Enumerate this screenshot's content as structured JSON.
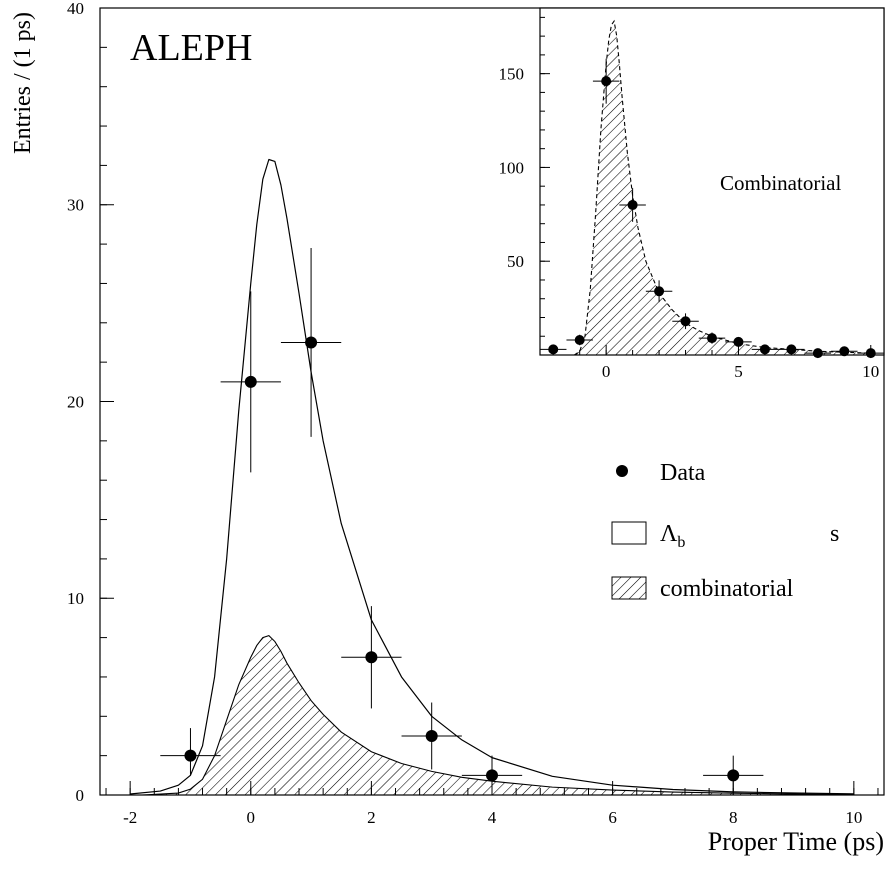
{
  "chart_data": [
    {
      "type": "scatter",
      "panel": "main",
      "title": "ALEPH",
      "xlabel": "Proper Time (ps)",
      "ylabel": "Entries / (1 ps)",
      "xlim": [
        -2.5,
        10.5
      ],
      "ylim": [
        0,
        40
      ],
      "xticks": [
        -2,
        0,
        2,
        4,
        6,
        8,
        10
      ],
      "yticks": [
        0,
        10,
        20,
        30,
        40
      ],
      "grid": false,
      "legend_position": "right",
      "legend": [
        {
          "marker": "filled-circle",
          "label": "Data"
        },
        {
          "marker": "open-box",
          "label": "Λ",
          "subscript": "b",
          "suffix": "s"
        },
        {
          "marker": "hatched-box",
          "label": "combinatorial"
        }
      ],
      "series": [
        {
          "name": "Data",
          "kind": "points-with-errors",
          "points": [
            {
              "x": -1,
              "y": 2,
              "xerr": 0.5,
              "yerr": [
                1.0,
                1.4
              ]
            },
            {
              "x": 0,
              "y": 21,
              "xerr": 0.5,
              "yerr": [
                4.6,
                4.6
              ]
            },
            {
              "x": 1,
              "y": 23,
              "xerr": 0.5,
              "yerr": [
                4.8,
                4.8
              ]
            },
            {
              "x": 2,
              "y": 7,
              "xerr": 0.5,
              "yerr": [
                2.6,
                2.6
              ]
            },
            {
              "x": 3,
              "y": 3,
              "xerr": 0.5,
              "yerr": [
                1.7,
                1.7
              ]
            },
            {
              "x": 4,
              "y": 1,
              "xerr": 0.5,
              "yerr": [
                0.9,
                1.0
              ]
            },
            {
              "x": 8,
              "y": 1,
              "xerr": 0.5,
              "yerr": [
                0.9,
                1.0
              ]
            }
          ]
        },
        {
          "name": "Λb signal + combinatorial (fit)",
          "kind": "curve",
          "x": [
            -2,
            -1.5,
            -1.2,
            -1.0,
            -0.8,
            -0.6,
            -0.4,
            -0.2,
            0.0,
            0.1,
            0.2,
            0.3,
            0.4,
            0.5,
            0.6,
            0.8,
            1.0,
            1.2,
            1.5,
            2.0,
            2.5,
            3.0,
            3.5,
            4.0,
            5.0,
            6.0,
            7.0,
            8.0,
            9.0,
            10.0
          ],
          "y": [
            0.05,
            0.2,
            0.5,
            1.0,
            2.5,
            6.0,
            12.0,
            19.5,
            26.0,
            29.0,
            31.3,
            32.3,
            32.2,
            31.0,
            29.3,
            25.5,
            21.5,
            18.0,
            13.8,
            8.9,
            6.0,
            4.0,
            2.8,
            1.9,
            0.95,
            0.5,
            0.28,
            0.16,
            0.1,
            0.06
          ]
        },
        {
          "name": "combinatorial",
          "kind": "hatched-area",
          "x": [
            -1.8,
            -1.2,
            -1.0,
            -0.8,
            -0.6,
            -0.4,
            -0.2,
            0.0,
            0.1,
            0.2,
            0.3,
            0.4,
            0.5,
            0.6,
            0.8,
            1.0,
            1.2,
            1.5,
            2.0,
            2.5,
            3.0,
            3.5,
            4.0,
            5.0,
            6.0,
            7.0,
            8.0,
            9.0,
            10.0
          ],
          "y": [
            0,
            0.1,
            0.3,
            0.8,
            2.0,
            3.8,
            5.6,
            7.0,
            7.6,
            8.0,
            8.1,
            7.8,
            7.3,
            6.7,
            5.7,
            4.8,
            4.1,
            3.2,
            2.2,
            1.6,
            1.2,
            0.9,
            0.7,
            0.4,
            0.25,
            0.15,
            0.09,
            0.05,
            0.03
          ]
        }
      ]
    },
    {
      "type": "scatter",
      "panel": "inset",
      "annotation": "Combinatorial",
      "xlim": [
        -2.5,
        10.5
      ],
      "ylim": [
        0,
        185
      ],
      "xticks": [
        0,
        5,
        10
      ],
      "yticks": [
        50,
        100,
        150
      ],
      "grid": false,
      "series": [
        {
          "name": "Data",
          "kind": "points-with-errors",
          "points": [
            {
              "x": -2,
              "y": 3,
              "xerr": 0.5,
              "yerr": [
                1.7,
                1.7
              ]
            },
            {
              "x": -1,
              "y": 8,
              "xerr": 0.5,
              "yerr": [
                2.8,
                2.8
              ]
            },
            {
              "x": 0,
              "y": 146,
              "xerr": 0.5,
              "yerr": [
                12,
                12
              ]
            },
            {
              "x": 1,
              "y": 80,
              "xerr": 0.5,
              "yerr": [
                9,
                9
              ]
            },
            {
              "x": 2,
              "y": 34,
              "xerr": 0.5,
              "yerr": [
                5.8,
                5.8
              ]
            },
            {
              "x": 3,
              "y": 18,
              "xerr": 0.5,
              "yerr": [
                4.2,
                4.2
              ]
            },
            {
              "x": 4,
              "y": 9,
              "xerr": 0.5,
              "yerr": [
                3,
                3
              ]
            },
            {
              "x": 5,
              "y": 7,
              "xerr": 0.5,
              "yerr": [
                2.6,
                2.6
              ]
            },
            {
              "x": 6,
              "y": 3,
              "xerr": 0.5,
              "yerr": [
                1.7,
                1.7
              ]
            },
            {
              "x": 7,
              "y": 3,
              "xerr": 0.5,
              "yerr": [
                1.7,
                1.7
              ]
            },
            {
              "x": 8,
              "y": 1,
              "xerr": 0.5,
              "yerr": [
                1,
                1
              ]
            },
            {
              "x": 9,
              "y": 2,
              "xerr": 0.5,
              "yerr": [
                1.4,
                1.4
              ]
            },
            {
              "x": 10,
              "y": 1,
              "xerr": 0.5,
              "yerr": [
                1,
                1
              ]
            }
          ]
        },
        {
          "name": "combinatorial fit",
          "kind": "hatched-area",
          "x": [
            -1.2,
            -1.0,
            -0.8,
            -0.6,
            -0.4,
            -0.2,
            0.0,
            0.1,
            0.2,
            0.3,
            0.4,
            0.5,
            0.6,
            0.8,
            1.0,
            1.2,
            1.5,
            2.0,
            2.5,
            3.0,
            3.5,
            4.0,
            5.0,
            6.0,
            7.0,
            8.0,
            9.0,
            10.0
          ],
          "y": [
            0,
            2,
            10,
            35,
            75,
            120,
            155,
            168,
            176,
            178,
            170,
            155,
            138,
            108,
            85,
            68,
            50,
            33,
            24,
            17,
            13,
            10,
            6,
            4,
            3,
            2,
            1.5,
            1
          ]
        }
      ]
    }
  ]
}
